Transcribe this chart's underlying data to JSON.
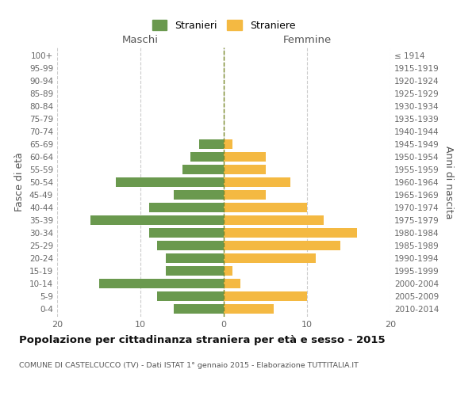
{
  "age_groups": [
    "0-4",
    "5-9",
    "10-14",
    "15-19",
    "20-24",
    "25-29",
    "30-34",
    "35-39",
    "40-44",
    "45-49",
    "50-54",
    "55-59",
    "60-64",
    "65-69",
    "70-74",
    "75-79",
    "80-84",
    "85-89",
    "90-94",
    "95-99",
    "100+"
  ],
  "birth_years": [
    "2010-2014",
    "2005-2009",
    "2000-2004",
    "1995-1999",
    "1990-1994",
    "1985-1989",
    "1980-1984",
    "1975-1979",
    "1970-1974",
    "1965-1969",
    "1960-1964",
    "1955-1959",
    "1950-1954",
    "1945-1949",
    "1940-1944",
    "1935-1939",
    "1930-1934",
    "1925-1929",
    "1920-1924",
    "1915-1919",
    "≤ 1914"
  ],
  "maschi": [
    6,
    8,
    15,
    7,
    7,
    8,
    9,
    16,
    9,
    6,
    13,
    5,
    4,
    3,
    0,
    0,
    0,
    0,
    0,
    0,
    0
  ],
  "femmine": [
    6,
    10,
    2,
    1,
    11,
    14,
    16,
    12,
    10,
    5,
    8,
    5,
    5,
    1,
    0,
    0,
    0,
    0,
    0,
    0,
    0
  ],
  "male_color": "#6a994e",
  "female_color": "#f4b942",
  "center_line_color": "#7a8a2a",
  "grid_color": "#cccccc",
  "background_color": "#ffffff",
  "title": "Popolazione per cittadinanza straniera per età e sesso - 2015",
  "subtitle": "COMUNE DI CASTELCUCCO (TV) - Dati ISTAT 1° gennaio 2015 - Elaborazione TUTTITALIA.IT",
  "ylabel_left": "Fasce di età",
  "ylabel_right": "Anni di nascita",
  "xlabel_maschi": "Maschi",
  "xlabel_femmine": "Femmine",
  "legend_male": "Stranieri",
  "legend_female": "Straniere",
  "xlim": 20,
  "bar_height": 0.75
}
